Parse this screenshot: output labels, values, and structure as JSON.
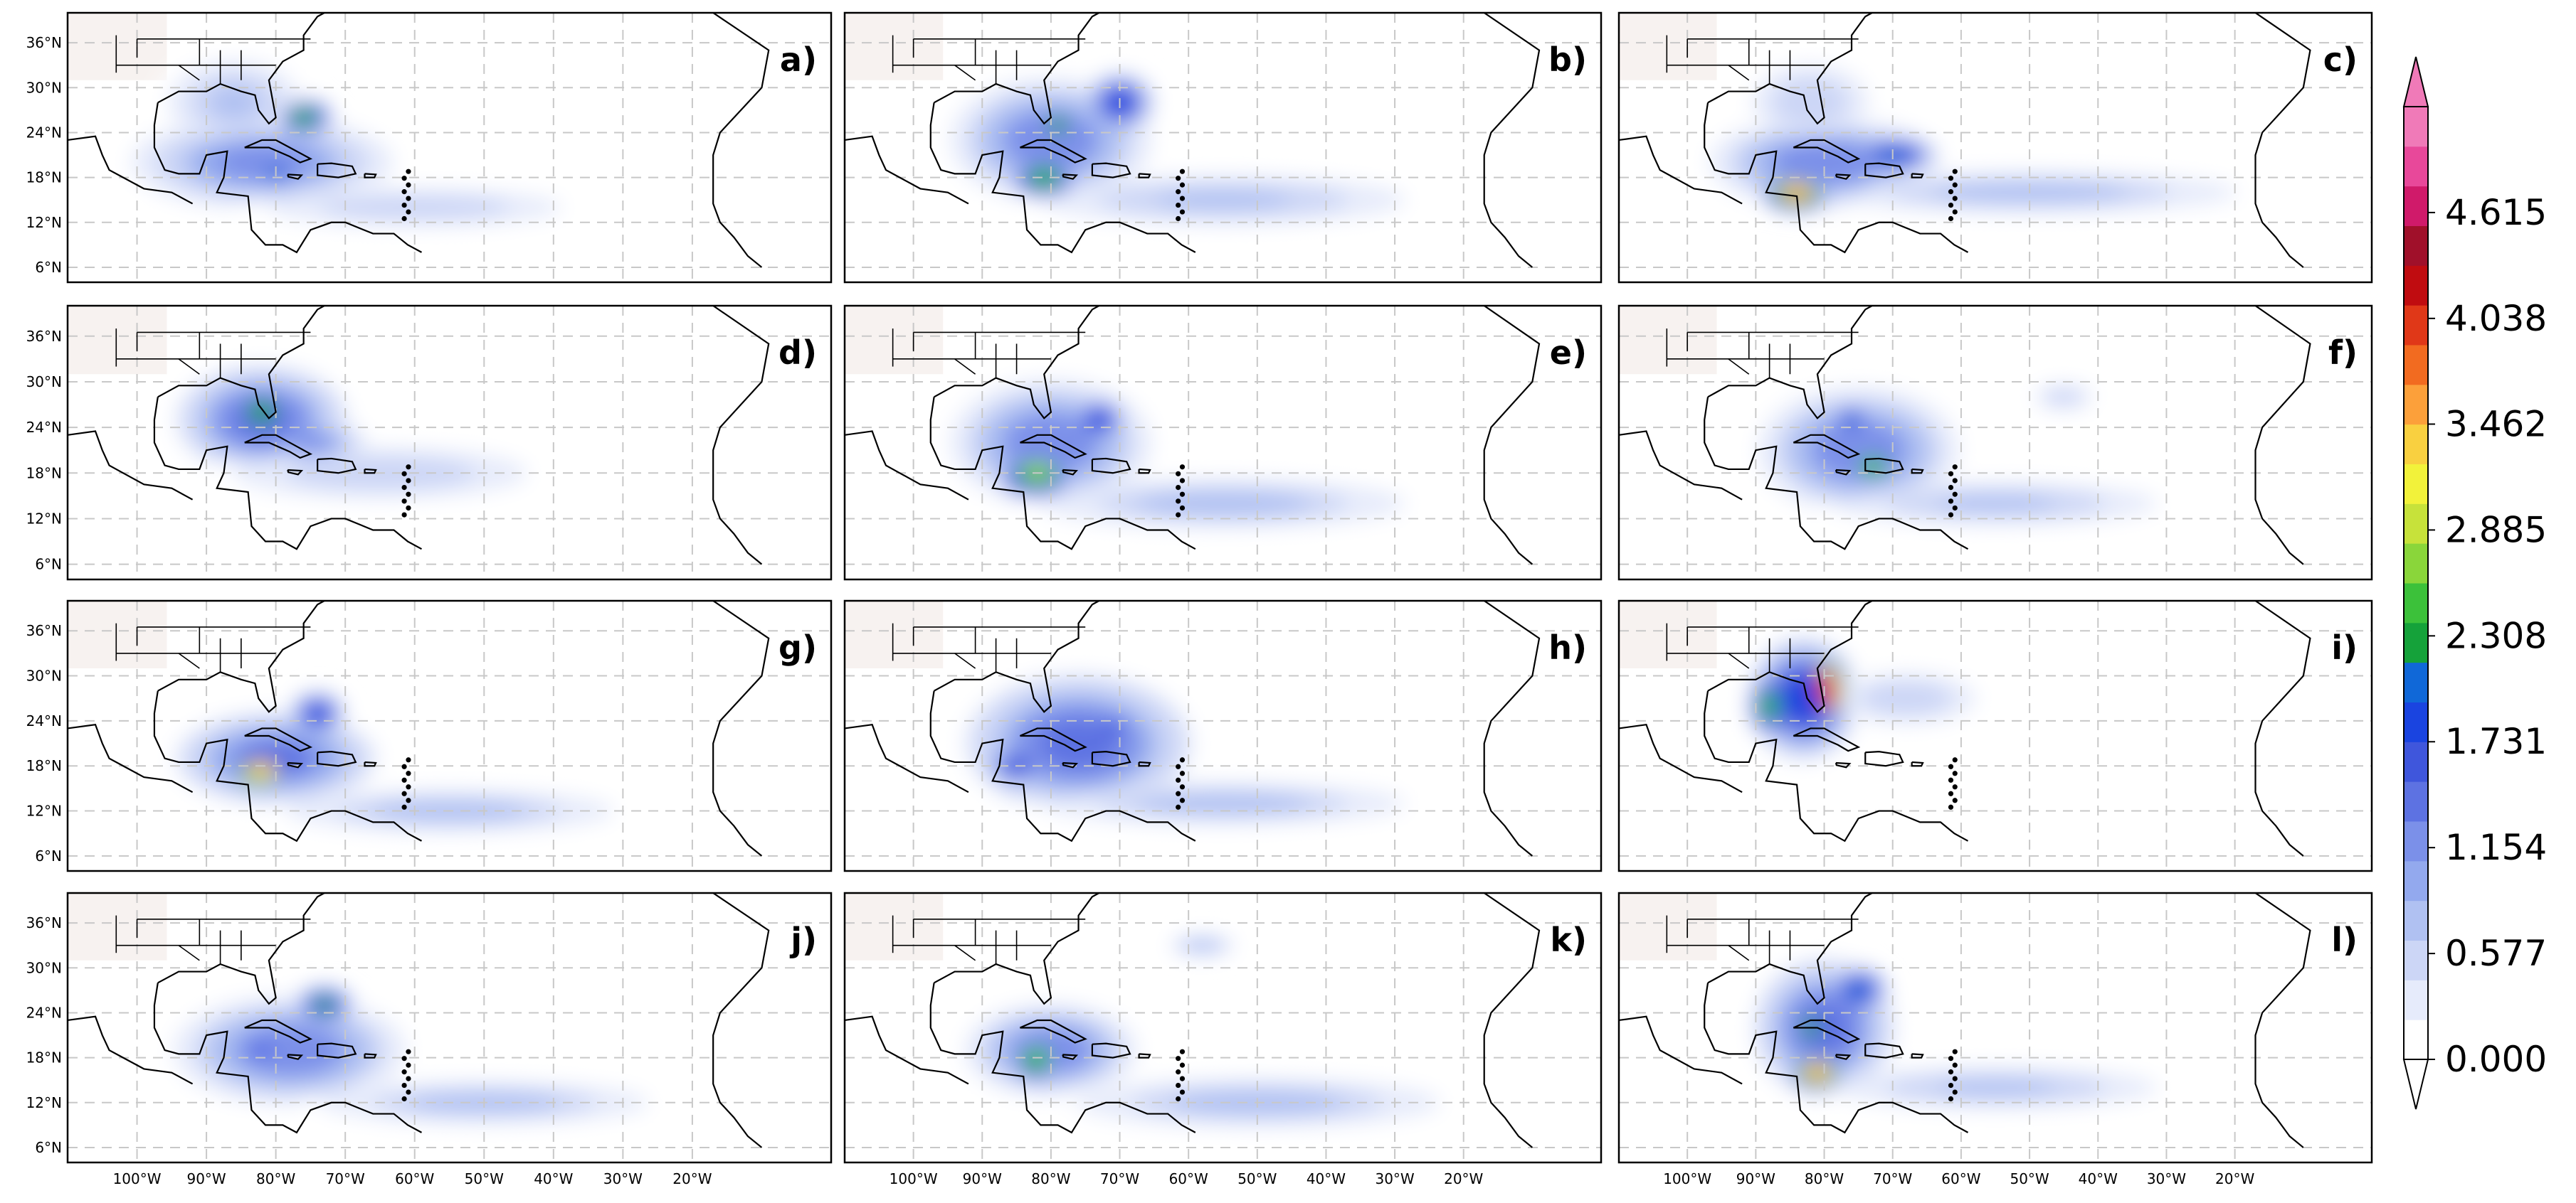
{
  "figure": {
    "colormap": [
      "#ffffff",
      "#e6ebfb",
      "#ccd6f6",
      "#b0c1f2",
      "#93a9ee",
      "#7b90e9",
      "#5d72e2",
      "#3f56dc",
      "#1a44e0",
      "#1068d8",
      "#15a23a",
      "#3cc13a",
      "#8ad63a",
      "#c7e23a",
      "#f2f23a",
      "#f9d040",
      "#fca03a",
      "#f26b20",
      "#e03818",
      "#c00c10",
      "#a0102a",
      "#d01a6a",
      "#e8489a",
      "#f07ab8"
    ],
    "colorbar": {
      "ticks": [
        "0.000",
        "0.577",
        "1.154",
        "1.731",
        "2.308",
        "2.885",
        "3.462",
        "4.038",
        "4.615"
      ],
      "vmin": 0.0,
      "vmax": 5.192,
      "extend": "both"
    },
    "lat_ticks": [
      "36°N",
      "30°N",
      "24°N",
      "18°N",
      "12°N",
      "6°N"
    ],
    "lon_ticks": [
      "100°W",
      "90°W",
      "80°W",
      "70°W",
      "60°W",
      "50°W",
      "40°W",
      "30°W",
      "20°W"
    ],
    "panels": [
      {
        "label": "a)",
        "blobs": [
          {
            "lon": -82,
            "lat": 20,
            "rx": 18,
            "ry": 6,
            "v": 1.2
          },
          {
            "lon": -76,
            "lat": 26,
            "rx": 4,
            "ry": 2.5,
            "v": 2.6
          },
          {
            "lon": -80,
            "lat": 18.5,
            "rx": 5,
            "ry": 2,
            "v": 2.2
          },
          {
            "lon": -60,
            "lat": 14,
            "rx": 25,
            "ry": 3,
            "v": 0.6
          },
          {
            "lon": -86,
            "lat": 28,
            "rx": 10,
            "ry": 6,
            "v": 0.7
          }
        ]
      },
      {
        "label": "b)",
        "blobs": [
          {
            "lon": -80,
            "lat": 23,
            "rx": 14,
            "ry": 8,
            "v": 1.3
          },
          {
            "lon": -79,
            "lat": 25,
            "rx": 4,
            "ry": 3,
            "v": 2.4
          },
          {
            "lon": -81,
            "lat": 18,
            "rx": 5,
            "ry": 3,
            "v": 2.6
          },
          {
            "lon": -70,
            "lat": 28,
            "rx": 5,
            "ry": 4,
            "v": 1.9
          },
          {
            "lon": -55,
            "lat": 15,
            "rx": 28,
            "ry": 3.5,
            "v": 0.7
          }
        ]
      },
      {
        "label": "c)",
        "blobs": [
          {
            "lon": -80,
            "lat": 20,
            "rx": 16,
            "ry": 6,
            "v": 1.3
          },
          {
            "lon": -84,
            "lat": 16,
            "rx": 5,
            "ry": 2.5,
            "v": 3.7
          },
          {
            "lon": -70,
            "lat": 21,
            "rx": 6,
            "ry": 2.5,
            "v": 2.2
          },
          {
            "lon": -50,
            "lat": 16,
            "rx": 32,
            "ry": 3,
            "v": 0.8
          },
          {
            "lon": -82,
            "lat": 28,
            "rx": 10,
            "ry": 6,
            "v": 0.6
          }
        ]
      },
      {
        "label": "d)",
        "blobs": [
          {
            "lon": -82,
            "lat": 25,
            "rx": 12,
            "ry": 7,
            "v": 1.5
          },
          {
            "lon": -82,
            "lat": 26,
            "rx": 6,
            "ry": 4,
            "v": 2.4
          },
          {
            "lon": -65,
            "lat": 18,
            "rx": 25,
            "ry": 4,
            "v": 0.6
          },
          {
            "lon": -75,
            "lat": 22,
            "rx": 8,
            "ry": 3,
            "v": 1.2
          }
        ]
      },
      {
        "label": "e)",
        "blobs": [
          {
            "lon": -80,
            "lat": 22,
            "rx": 14,
            "ry": 8,
            "v": 1.3
          },
          {
            "lon": -82,
            "lat": 18,
            "rx": 6,
            "ry": 3.5,
            "v": 2.9
          },
          {
            "lon": -73,
            "lat": 25,
            "rx": 4,
            "ry": 3,
            "v": 2.0
          },
          {
            "lon": -55,
            "lat": 14,
            "rx": 28,
            "ry": 3.5,
            "v": 0.8
          }
        ]
      },
      {
        "label": "f)",
        "blobs": [
          {
            "lon": -75,
            "lat": 21,
            "rx": 14,
            "ry": 8,
            "v": 1.3
          },
          {
            "lon": -73,
            "lat": 19,
            "rx": 5,
            "ry": 3,
            "v": 2.7
          },
          {
            "lon": -76,
            "lat": 25,
            "rx": 3,
            "ry": 2,
            "v": 2.1
          },
          {
            "lon": -55,
            "lat": 14,
            "rx": 25,
            "ry": 3,
            "v": 0.7
          },
          {
            "lon": -45,
            "lat": 28,
            "rx": 5,
            "ry": 2,
            "v": 0.6
          }
        ]
      },
      {
        "label": "g)",
        "blobs": [
          {
            "lon": -80,
            "lat": 19,
            "rx": 14,
            "ry": 6,
            "v": 1.4
          },
          {
            "lon": -82,
            "lat": 17.5,
            "rx": 6,
            "ry": 3,
            "v": 3.4
          },
          {
            "lon": -74,
            "lat": 25,
            "rx": 4,
            "ry": 3,
            "v": 2.0
          },
          {
            "lon": -55,
            "lat": 12,
            "rx": 25,
            "ry": 3,
            "v": 0.8
          }
        ]
      },
      {
        "label": "h)",
        "blobs": [
          {
            "lon": -76,
            "lat": 21,
            "rx": 16,
            "ry": 9,
            "v": 1.5
          },
          {
            "lon": -71,
            "lat": 23,
            "rx": 3,
            "ry": 2,
            "v": 2.0
          },
          {
            "lon": -55,
            "lat": 13,
            "rx": 28,
            "ry": 3,
            "v": 0.8
          },
          {
            "lon": -85,
            "lat": 18,
            "rx": 5,
            "ry": 3,
            "v": 1.6
          }
        ]
      },
      {
        "label": "i)",
        "blobs": [
          {
            "lon": -83,
            "lat": 27,
            "rx": 8,
            "ry": 8,
            "v": 2.0
          },
          {
            "lon": -80,
            "lat": 28,
            "rx": 3.5,
            "ry": 5,
            "v": 4.8
          },
          {
            "lon": -88,
            "lat": 26,
            "rx": 3,
            "ry": 4,
            "v": 2.7
          },
          {
            "lon": -68,
            "lat": 27,
            "rx": 12,
            "ry": 4,
            "v": 0.6
          }
        ]
      },
      {
        "label": "j)",
        "blobs": [
          {
            "lon": -78,
            "lat": 19,
            "rx": 16,
            "ry": 7,
            "v": 1.3
          },
          {
            "lon": -73,
            "lat": 25,
            "rx": 4,
            "ry": 2.5,
            "v": 2.3
          },
          {
            "lon": -82,
            "lat": 19,
            "rx": 4,
            "ry": 2,
            "v": 2.0
          },
          {
            "lon": -50,
            "lat": 12,
            "rx": 25,
            "ry": 3,
            "v": 0.8
          }
        ]
      },
      {
        "label": "k)",
        "blobs": [
          {
            "lon": -80,
            "lat": 19,
            "rx": 12,
            "ry": 6,
            "v": 1.3
          },
          {
            "lon": -82,
            "lat": 18,
            "rx": 5,
            "ry": 4,
            "v": 2.6
          },
          {
            "lon": -50,
            "lat": 12,
            "rx": 28,
            "ry": 3.5,
            "v": 0.8
          },
          {
            "lon": -58,
            "lat": 33,
            "rx": 5,
            "ry": 1.5,
            "v": 0.9
          }
        ]
      },
      {
        "label": "l)",
        "blobs": [
          {
            "lon": -80,
            "lat": 22,
            "rx": 10,
            "ry": 9,
            "v": 1.5
          },
          {
            "lon": -81,
            "lat": 16,
            "rx": 4,
            "ry": 2.5,
            "v": 3.8
          },
          {
            "lon": -75,
            "lat": 27,
            "rx": 4,
            "ry": 3,
            "v": 2.1
          },
          {
            "lon": -82,
            "lat": 22,
            "rx": 3,
            "ry": 4,
            "v": 2.3
          },
          {
            "lon": -55,
            "lat": 14,
            "rx": 25,
            "ry": 3,
            "v": 0.7
          }
        ]
      }
    ]
  }
}
